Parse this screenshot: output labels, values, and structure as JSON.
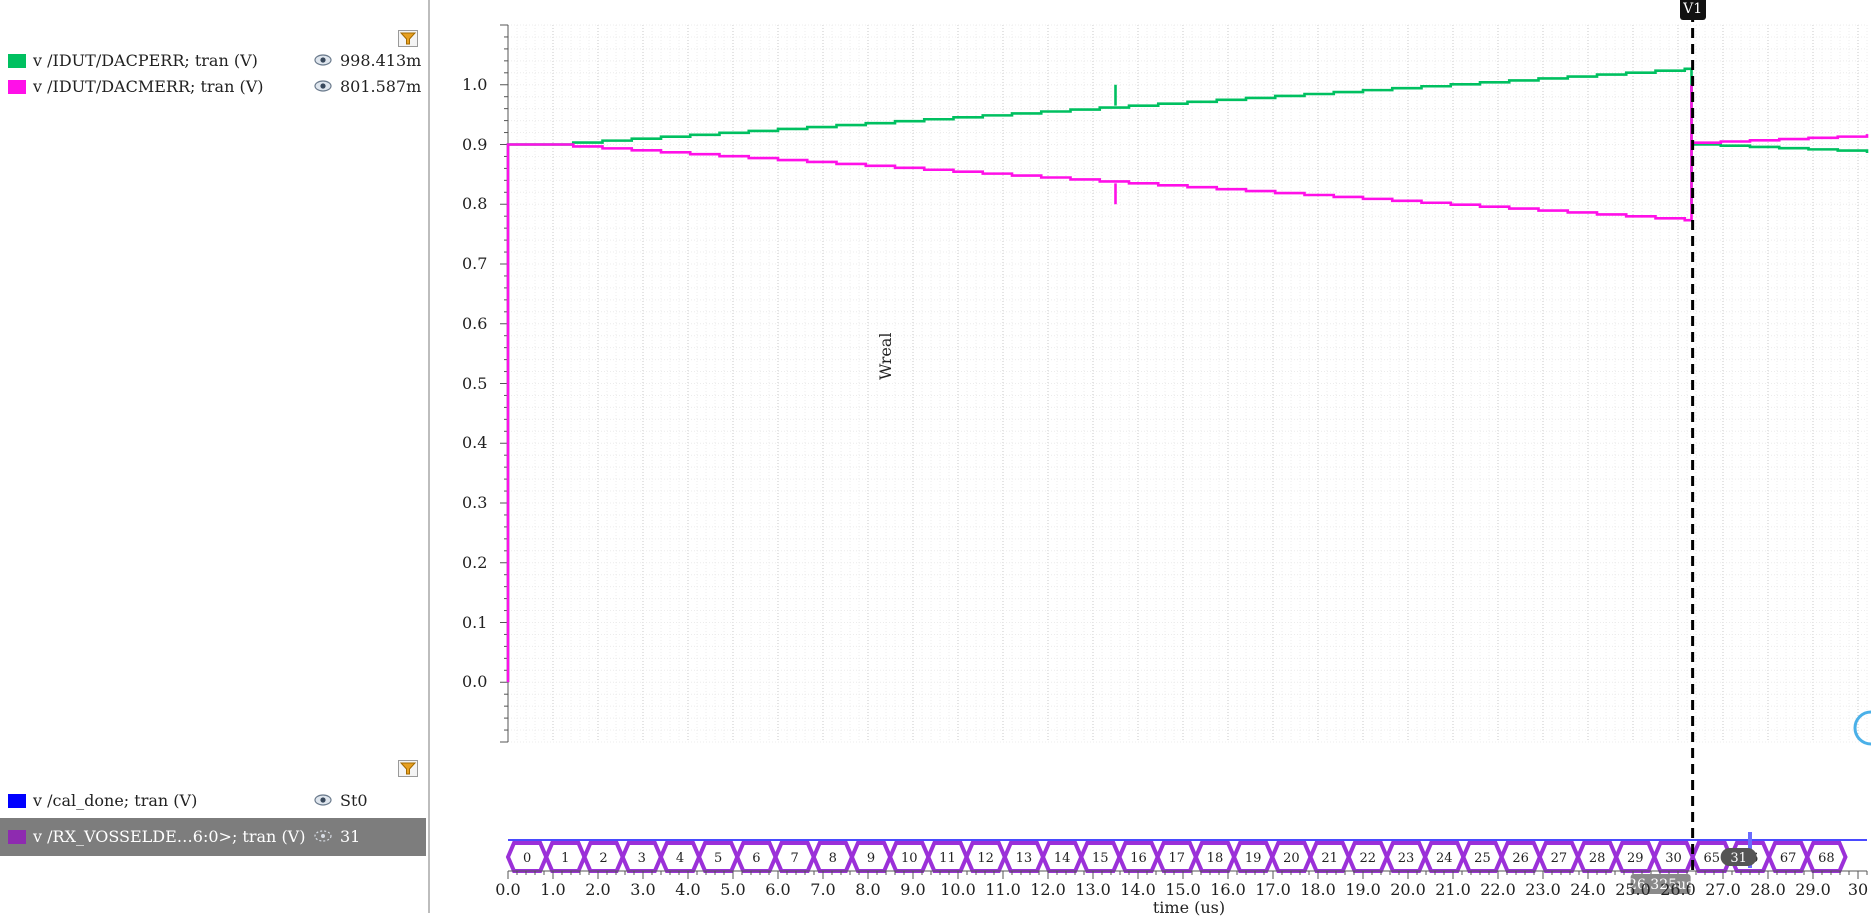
{
  "legend_top": {
    "signals": [
      {
        "name": "v /IDUT/DACPERR; tran (V)",
        "value": "998.413m",
        "color": "#00c060"
      },
      {
        "name": "v /IDUT/DACMERR; tran (V)",
        "value": "801.587m",
        "color": "#ff10e8"
      }
    ]
  },
  "legend_bottom": {
    "signals": [
      {
        "name": "v /cal_done; tran (V)",
        "value": "St0",
        "color": "#0000ff"
      },
      {
        "name": "v /RX_VOSSELDE…6:0>; tran (V)",
        "value": "31",
        "color": "#8e2bb0"
      }
    ]
  },
  "analog_axis": {
    "ylabel": "Wreal",
    "yticks": [
      "1.0",
      "0.9",
      "0.8",
      "0.7",
      "0.6",
      "0.5",
      "0.4",
      "0.3",
      "0.2",
      "0.1",
      "0.0"
    ]
  },
  "x_axis": {
    "label": "time (us)",
    "ticks": [
      "0.0",
      "1.0",
      "2.0",
      "3.0",
      "4.0",
      "5.0",
      "6.0",
      "7.0",
      "8.0",
      "9.0",
      "10.0",
      "11.0",
      "12.0",
      "13.0",
      "14.0",
      "15.0",
      "16.0",
      "17.0",
      "18.0",
      "19.0",
      "20.0",
      "21.0",
      "22.0",
      "23.0",
      "24.0",
      "25.0",
      "26.0",
      "27.0",
      "28.0",
      "29.0",
      "30"
    ]
  },
  "cursor": {
    "label": "V1",
    "time_label": "26.325us",
    "bus_marker": "31"
  },
  "bus": {
    "values": [
      "0",
      "1",
      "2",
      "3",
      "4",
      "5",
      "6",
      "7",
      "8",
      "9",
      "10",
      "11",
      "12",
      "13",
      "14",
      "15",
      "16",
      "17",
      "18",
      "19",
      "20",
      "21",
      "22",
      "23",
      "24",
      "25",
      "26",
      "27",
      "28",
      "29",
      "30",
      "65",
      "66",
      "67",
      "68"
    ]
  },
  "chart_data": {
    "type": "line",
    "xlabel": "time (us)",
    "ylabel": "Wreal",
    "xlim": [
      0,
      30.2
    ],
    "ylim": [
      -0.1,
      1.1
    ],
    "grid": true,
    "series": [
      {
        "name": "v /IDUT/DACPERR; tran (V)",
        "color": "#00c060",
        "start": 0.9,
        "step_up": 0.00325,
        "step_period_us": 0.65,
        "steps_until": 26.3,
        "after": 0.9,
        "after_slope": -0.0017,
        "glitch_at": 13.5,
        "glitch_to": 1.0
      },
      {
        "name": "v /IDUT/DACMERR; tran (V)",
        "color": "#ff10e8",
        "start": 0.9,
        "step_down": -0.00325,
        "step_period_us": 0.65,
        "steps_until": 26.3,
        "after": 0.903,
        "after_slope": 0.0017,
        "glitch_at": 13.5,
        "glitch_to": 0.8
      }
    ]
  }
}
